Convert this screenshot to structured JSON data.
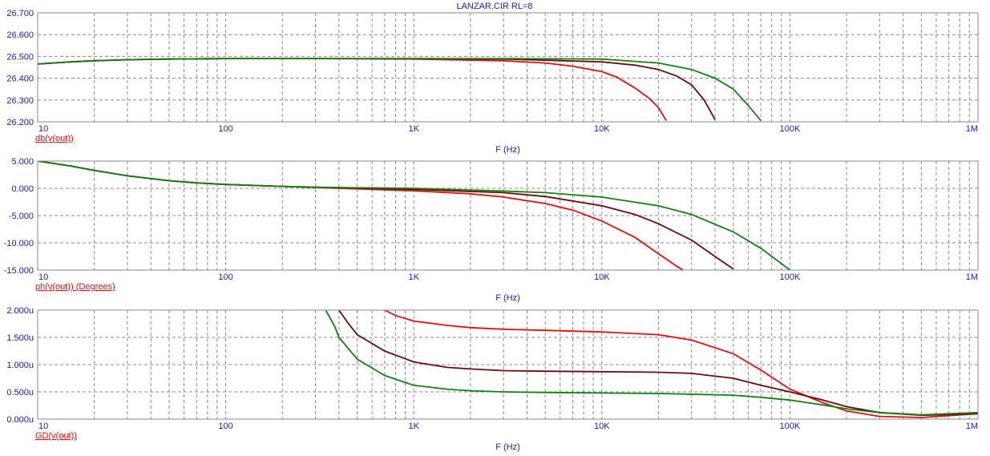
{
  "title": "LANZAR.CIR RL=8",
  "colors": {
    "axis_text": "#1c1cb8",
    "trace_label": "#e01010",
    "grid": "#8a8a8a",
    "frame": "#8a8a8a",
    "series": [
      "#e01010",
      "#6b0a0a",
      "#128012"
    ]
  },
  "chart_data": [
    {
      "type": "line",
      "xscale": "log",
      "xlabel": "F (Hz)",
      "ylabel": "db(v(out))",
      "xlim": [
        10,
        1000000
      ],
      "ylim": [
        26.2,
        26.7
      ],
      "xticks": [
        "10",
        "100",
        "1K",
        "10K",
        "100K",
        "1M"
      ],
      "yticks": [
        "26.700",
        "26.600",
        "26.500",
        "26.400",
        "26.300",
        "26.200"
      ],
      "grid": true,
      "series": [
        {
          "x": [
            10,
            15,
            20,
            30,
            50,
            100,
            300,
            1000,
            3000,
            5000,
            7000,
            10000,
            12000,
            15000,
            18000,
            20000,
            22000
          ],
          "y": [
            26.465,
            26.475,
            26.48,
            26.485,
            26.488,
            26.49,
            26.49,
            26.488,
            26.48,
            26.47,
            26.455,
            26.43,
            26.405,
            26.355,
            26.305,
            26.265,
            26.205
          ]
        },
        {
          "x": [
            10,
            15,
            20,
            30,
            50,
            100,
            300,
            1000,
            3000,
            10000,
            15000,
            20000,
            25000,
            30000,
            35000,
            40000
          ],
          "y": [
            26.465,
            26.475,
            26.48,
            26.485,
            26.488,
            26.49,
            26.49,
            26.49,
            26.488,
            26.475,
            26.46,
            26.44,
            26.41,
            26.37,
            26.3,
            26.21
          ]
        },
        {
          "x": [
            10,
            15,
            20,
            30,
            50,
            100,
            300,
            1000,
            3000,
            10000,
            20000,
            30000,
            40000,
            50000,
            60000,
            70000
          ],
          "y": [
            26.465,
            26.475,
            26.48,
            26.485,
            26.488,
            26.49,
            26.49,
            26.49,
            26.49,
            26.488,
            26.47,
            26.44,
            26.4,
            26.35,
            26.275,
            26.205
          ]
        }
      ]
    },
    {
      "type": "line",
      "xscale": "log",
      "xlabel": "F (Hz)",
      "ylabel": "ph(v(out)) (Degrees)",
      "xlim": [
        10,
        1000000
      ],
      "ylim": [
        -15,
        5
      ],
      "xticks": [
        "10",
        "100",
        "1K",
        "10K",
        "100K",
        "1M"
      ],
      "yticks": [
        "5.000",
        "0.000",
        "-5.000",
        "-10.000",
        "-15.000"
      ],
      "grid": true,
      "series": [
        {
          "x": [
            10,
            15,
            20,
            30,
            50,
            70,
            100,
            200,
            300,
            500,
            1000,
            2000,
            3000,
            5000,
            7000,
            10000,
            15000,
            20000,
            25000,
            27000
          ],
          "y": [
            5.0,
            4.1,
            3.3,
            2.3,
            1.4,
            1.0,
            0.7,
            0.35,
            0.15,
            -0.1,
            -0.45,
            -1.0,
            -1.6,
            -2.8,
            -4.0,
            -6.0,
            -9.0,
            -12.0,
            -14.3,
            -15.0
          ]
        },
        {
          "x": [
            10,
            15,
            20,
            30,
            50,
            70,
            100,
            200,
            300,
            500,
            1000,
            3000,
            5000,
            10000,
            15000,
            20000,
            30000,
            40000,
            50000
          ],
          "y": [
            5.0,
            4.1,
            3.3,
            2.3,
            1.4,
            1.0,
            0.7,
            0.35,
            0.2,
            0.05,
            -0.2,
            -0.8,
            -1.5,
            -3.2,
            -4.8,
            -6.5,
            -9.5,
            -12.5,
            -14.8
          ]
        },
        {
          "x": [
            10,
            15,
            20,
            30,
            50,
            70,
            100,
            200,
            300,
            500,
            1000,
            3000,
            5000,
            10000,
            20000,
            30000,
            50000,
            70000,
            90000,
            100000
          ],
          "y": [
            5.0,
            4.1,
            3.3,
            2.3,
            1.4,
            1.0,
            0.7,
            0.35,
            0.2,
            0.1,
            0.0,
            -0.5,
            -0.8,
            -1.6,
            -3.2,
            -4.8,
            -8.0,
            -11.0,
            -13.8,
            -15.0
          ]
        }
      ]
    },
    {
      "type": "line",
      "xscale": "log",
      "xlabel": "F (Hz)",
      "ylabel": "GD(v(out))",
      "xlim": [
        10,
        1000000
      ],
      "ylim": [
        0,
        2
      ],
      "yunit": "u",
      "xticks": [
        "10",
        "100",
        "1K",
        "10K",
        "100K",
        "1M"
      ],
      "yticks": [
        "2.000u",
        "1.500u",
        "1.000u",
        "0.500u",
        "0.000u"
      ],
      "grid": true,
      "series": [
        {
          "x": [
            700,
            800,
            1000,
            1500,
            2000,
            3000,
            5000,
            10000,
            20000,
            30000,
            50000,
            70000,
            100000,
            150000,
            200000,
            300000,
            500000,
            1000000
          ],
          "y": [
            2.0,
            1.9,
            1.8,
            1.72,
            1.68,
            1.65,
            1.63,
            1.6,
            1.55,
            1.45,
            1.2,
            0.9,
            0.55,
            0.3,
            0.15,
            0.05,
            0.03,
            0.1
          ]
        },
        {
          "x": [
            400,
            450,
            500,
            700,
            1000,
            1500,
            2000,
            3000,
            5000,
            10000,
            20000,
            30000,
            50000,
            70000,
            100000,
            150000,
            200000,
            300000,
            500000,
            1000000
          ],
          "y": [
            2.0,
            1.75,
            1.55,
            1.25,
            1.05,
            0.95,
            0.92,
            0.89,
            0.88,
            0.87,
            0.86,
            0.84,
            0.75,
            0.62,
            0.5,
            0.35,
            0.23,
            0.12,
            0.07,
            0.1
          ]
        },
        {
          "x": [
            340,
            380,
            400,
            500,
            700,
            1000,
            1500,
            2000,
            3000,
            5000,
            10000,
            20000,
            50000,
            70000,
            100000,
            150000,
            200000,
            300000,
            500000,
            1000000
          ],
          "y": [
            2.0,
            1.7,
            1.5,
            1.1,
            0.8,
            0.62,
            0.55,
            0.52,
            0.5,
            0.49,
            0.48,
            0.47,
            0.44,
            0.4,
            0.35,
            0.26,
            0.19,
            0.12,
            0.08,
            0.12
          ]
        }
      ]
    }
  ]
}
